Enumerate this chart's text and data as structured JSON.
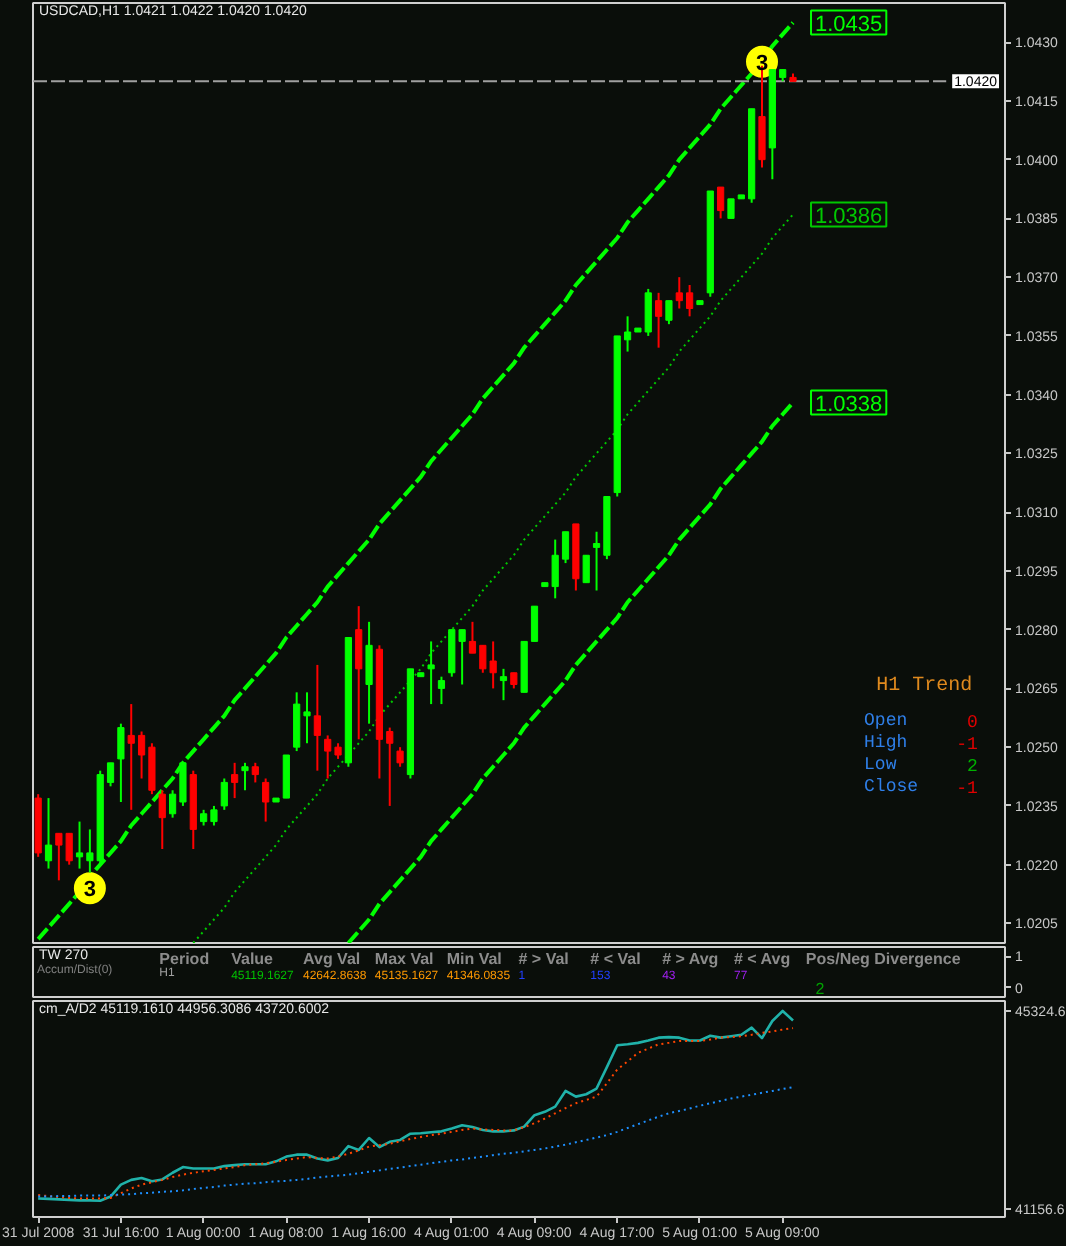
{
  "chart_data": [
    {
      "type": "candlestick",
      "title": "USDCAD,H1 1.0421 1.0422 1.0420 1.0420",
      "categories": [
        "31 Jul 2008",
        null,
        null,
        null,
        null,
        null,
        null,
        null,
        "31 Jul 16:00",
        null,
        null,
        null,
        null,
        null,
        null,
        null,
        "1 Aug 00:00",
        null,
        null,
        null,
        null,
        null,
        null,
        null,
        "1 Aug 08:00",
        null,
        null,
        null,
        null,
        null,
        null,
        null,
        "1 Aug 16:00",
        null,
        null,
        null,
        null,
        null,
        null,
        null,
        "4 Aug 01:00",
        null,
        null,
        null,
        null,
        null,
        null,
        null,
        "4 Aug 09:00",
        null,
        null,
        null,
        null,
        null,
        null,
        null,
        "4 Aug 17:00",
        null,
        null,
        null,
        null,
        null,
        null,
        null,
        "5 Aug 01:00",
        null,
        null,
        null,
        null,
        null,
        null,
        null,
        "5 Aug 09:00",
        null,
        null,
        null,
        null,
        null,
        null,
        null,
        null,
        null,
        null,
        null,
        null,
        null,
        null,
        null,
        null,
        null,
        null,
        null,
        null,
        null
      ],
      "ohlc": [
        [
          1.0237,
          1.0238,
          1.0222,
          1.0223
        ],
        [
          1.0221,
          1.0237,
          1.0219,
          1.0225
        ],
        [
          1.0228,
          1.0228,
          1.0216,
          1.0225
        ],
        [
          1.0228,
          1.0228,
          1.022,
          1.0221
        ],
        [
          1.0222,
          1.0231,
          1.0219,
          1.0223
        ],
        [
          1.0221,
          1.0229,
          1.0218,
          1.0223
        ],
        [
          1.0221,
          1.0244,
          1.022,
          1.0243
        ],
        [
          1.0241,
          1.0246,
          1.024,
          1.0246
        ],
        [
          1.0247,
          1.0256,
          1.0236,
          1.0255
        ],
        [
          1.0253,
          1.0261,
          1.0234,
          1.0251
        ],
        [
          1.0253,
          1.0254,
          1.0242,
          1.0248
        ],
        [
          1.025,
          1.0251,
          1.0238,
          1.0239
        ],
        [
          1.0238,
          1.0239,
          1.0224,
          1.0232
        ],
        [
          1.0233,
          1.0239,
          1.0232,
          1.0238
        ],
        [
          1.0236,
          1.0246,
          1.0235,
          1.0246
        ],
        [
          1.0243,
          1.0244,
          1.0224,
          1.0229
        ],
        [
          1.0231,
          1.0234,
          1.023,
          1.0233
        ],
        [
          1.0231,
          1.0235,
          1.023,
          1.0234
        ],
        [
          1.0235,
          1.0242,
          1.0234,
          1.0241
        ],
        [
          1.0243,
          1.0246,
          1.0237,
          1.0241
        ],
        [
          1.0244,
          1.0246,
          1.0239,
          1.0245
        ],
        [
          1.0245,
          1.0246,
          1.0241,
          1.0243
        ],
        [
          1.0241,
          1.0242,
          1.0231,
          1.0236
        ],
        [
          1.0236,
          1.0237,
          1.0236,
          1.0237
        ],
        [
          1.0237,
          1.0248,
          1.0237,
          1.0248
        ],
        [
          1.025,
          1.0264,
          1.0249,
          1.0261
        ],
        [
          1.0258,
          1.0264,
          1.0251,
          1.0259
        ],
        [
          1.0258,
          1.0271,
          1.0244,
          1.0253
        ],
        [
          1.0252,
          1.0253,
          1.0242,
          1.0249
        ],
        [
          1.025,
          1.0251,
          1.0247,
          1.0248
        ],
        [
          1.0246,
          1.0278,
          1.0245,
          1.0278
        ],
        [
          1.028,
          1.0286,
          1.0252,
          1.027
        ],
        [
          1.0266,
          1.0282,
          1.0256,
          1.0276
        ],
        [
          1.0275,
          1.0276,
          1.0242,
          1.0252
        ],
        [
          1.0254,
          1.0255,
          1.0235,
          1.0251
        ],
        [
          1.0249,
          1.025,
          1.0245,
          1.0246
        ],
        [
          1.0243,
          1.027,
          1.0242,
          1.027
        ],
        [
          1.0268,
          1.0269,
          1.0268,
          1.0269
        ],
        [
          1.027,
          1.0277,
          1.0261,
          1.0271
        ],
        [
          1.0265,
          1.0268,
          1.0261,
          1.0267
        ],
        [
          1.0269,
          1.028,
          1.0268,
          1.028
        ],
        [
          1.0277,
          1.028,
          1.0266,
          1.028
        ],
        [
          1.0277,
          1.0282,
          1.0274,
          1.0274
        ],
        [
          1.0276,
          1.0276,
          1.0269,
          1.027
        ],
        [
          1.0272,
          1.0277,
          1.0265,
          1.0269
        ],
        [
          1.0267,
          1.027,
          1.0262,
          1.0268
        ],
        [
          1.0269,
          1.0269,
          1.0265,
          1.0266
        ],
        [
          1.0264,
          1.0277,
          1.0264,
          1.0277
        ],
        [
          1.0277,
          1.0286,
          1.0277,
          1.0286
        ],
        [
          1.0291,
          1.0292,
          1.0291,
          1.0292
        ],
        [
          1.0291,
          1.0303,
          1.0288,
          1.0299
        ],
        [
          1.0298,
          1.0305,
          1.0297,
          1.0305
        ],
        [
          1.0307,
          1.0307,
          1.029,
          1.0293
        ],
        [
          1.0292,
          1.0299,
          1.0292,
          1.0299
        ],
        [
          1.0301,
          1.0305,
          1.029,
          1.0302
        ],
        [
          1.0299,
          1.0314,
          1.0298,
          1.0314
        ],
        [
          1.0315,
          1.0355,
          1.0314,
          1.0355
        ],
        [
          1.0354,
          1.036,
          1.0351,
          1.0356
        ],
        [
          1.0356,
          1.0357,
          1.0356,
          1.0357
        ],
        [
          1.0356,
          1.0367,
          1.0355,
          1.0366
        ],
        [
          1.0364,
          1.0366,
          1.0352,
          1.036
        ],
        [
          1.0359,
          1.0364,
          1.0358,
          1.0364
        ],
        [
          1.0366,
          1.037,
          1.0362,
          1.0364
        ],
        [
          1.0366,
          1.0368,
          1.036,
          1.0362
        ],
        [
          1.0363,
          1.0364,
          1.0363,
          1.0364
        ],
        [
          1.0366,
          1.0392,
          1.0365,
          1.0392
        ],
        [
          1.0393,
          1.0393,
          1.0385,
          1.0387
        ],
        [
          1.0385,
          1.039,
          1.0385,
          1.039
        ],
        [
          1.039,
          1.0391,
          1.039,
          1.0391
        ],
        [
          1.039,
          1.0413,
          1.0389,
          1.0413
        ],
        [
          1.0411,
          1.0424,
          1.0398,
          1.04
        ],
        [
          1.0403,
          1.0423,
          1.0395,
          1.0423
        ],
        [
          1.0421,
          1.0423,
          1.042,
          1.0423
        ],
        [
          1.0421,
          1.0422,
          1.042,
          1.042
        ],
        null,
        null,
        null,
        null,
        null,
        null,
        null,
        null,
        null,
        null,
        null,
        null,
        null,
        null,
        null,
        null,
        null,
        null,
        null,
        null
      ],
      "colors": [
        "#ff0000",
        "#00ff00",
        "#ff0000",
        "#ff0000",
        "#00ff00",
        "#00ff00",
        "#00ff00",
        "#00ff00",
        "#00ff00",
        "#ff0000",
        "#ff0000",
        "#ff0000",
        "#ff0000",
        "#00ff00",
        "#00ff00",
        "#ff0000",
        "#00ff00",
        "#00ff00",
        "#00ff00",
        "#ff0000",
        "#00ff00",
        "#ff0000",
        "#ff0000",
        "#00ff00",
        "#00ff00",
        "#00ff00",
        "#00ff00",
        "#ff0000",
        "#ff0000",
        "#ff0000",
        "#00ff00",
        "#ff0000",
        "#00ff00",
        "#ff0000",
        "#ff0000",
        "#ff0000",
        "#00ff00",
        "#00ff00",
        "#00ff00",
        "#00ff00",
        "#00ff00",
        "#00ff00",
        "#ff0000",
        "#ff0000",
        "#ff0000",
        "#00ff00",
        "#ff0000",
        "#00ff00",
        "#00ff00",
        "#00ff00",
        "#00ff00",
        "#00ff00",
        "#ff0000",
        "#00ff00",
        "#00ff00",
        "#00ff00",
        "#00ff00",
        "#00ff00",
        "#00ff00",
        "#00ff00",
        "#ff0000",
        "#00ff00",
        "#ff0000",
        "#ff0000",
        "#00ff00",
        "#00ff00",
        "#ff0000",
        "#00ff00",
        "#00ff00",
        "#00ff00",
        "#ff0000",
        "#00ff00",
        "#00ff00",
        "#ff0000",
        null,
        null,
        null,
        null,
        null,
        null,
        null,
        null,
        null,
        null,
        null,
        null,
        null,
        null,
        null,
        null,
        null,
        null,
        null,
        null
      ],
      "series": [
        {
          "type": "line",
          "color": "#00ff00",
          "line_style": "dashed",
          "values": [
            1.0201,
            1.0204,
            1.0207,
            1.021,
            1.0213,
            1.0217,
            1.022,
            1.0223,
            1.0226,
            1.023,
            1.0233,
            1.0236,
            1.0239,
            1.0242,
            1.0246,
            1.0249,
            1.0252,
            1.0255,
            1.0258,
            1.0262,
            1.0265,
            1.0268,
            1.0271,
            1.0274,
            1.0278,
            1.0281,
            1.0284,
            1.0287,
            1.0291,
            1.0294,
            1.0297,
            1.03,
            1.0303,
            1.0307,
            1.031,
            1.0313,
            1.0316,
            1.0319,
            1.0323,
            1.0326,
            1.0329,
            1.0332,
            1.0335,
            1.0339,
            1.0342,
            1.0345,
            1.0348,
            1.0352,
            1.0355,
            1.0358,
            1.0361,
            1.0364,
            1.0368,
            1.0371,
            1.0374,
            1.0377,
            1.038,
            1.0384,
            1.0387,
            1.039,
            1.0393,
            1.0396,
            1.04,
            1.0403,
            1.0406,
            1.0409,
            1.0413,
            1.0416,
            1.0419,
            1.0422,
            1.0425,
            1.0429,
            1.0432,
            1.0435,
            null,
            null,
            null,
            null,
            null,
            null,
            null,
            null,
            null,
            null,
            null,
            null,
            null,
            null,
            null,
            null,
            null,
            null,
            null,
            null
          ],
          "value_labels": [
            null,
            null,
            null,
            null,
            null,
            null,
            null,
            null,
            null,
            null,
            null,
            null,
            null,
            null,
            null,
            null,
            null,
            null,
            null,
            null,
            null,
            null,
            null,
            null,
            null,
            null,
            null,
            null,
            null,
            null,
            null,
            null,
            null,
            null,
            null,
            null,
            null,
            null,
            null,
            null,
            null,
            null,
            null,
            null,
            null,
            null,
            null,
            null,
            null,
            null,
            null,
            null,
            null,
            null,
            null,
            null,
            null,
            null,
            null,
            null,
            null,
            null,
            null,
            null,
            null,
            null,
            null,
            null,
            null,
            null,
            null,
            null,
            null,
            "1.0435",
            null,
            null,
            null,
            null,
            null,
            null,
            null,
            null,
            null,
            null,
            null,
            null,
            null,
            null,
            null,
            null,
            null,
            null,
            null,
            null
          ]
        },
        {
          "type": "line",
          "color": "#00c800",
          "line_style": "dotted",
          "values": [
            null,
            null,
            null,
            null,
            null,
            null,
            null,
            null,
            null,
            null,
            null,
            null,
            null,
            null,
            null,
            1.02,
            1.0203,
            1.0206,
            1.0209,
            1.0213,
            1.0216,
            1.0219,
            1.0222,
            1.0225,
            1.0229,
            1.0232,
            1.0235,
            1.0238,
            1.0242,
            1.0245,
            1.0248,
            1.0251,
            1.0254,
            1.0258,
            1.0261,
            1.0264,
            1.0267,
            1.027,
            1.0274,
            1.0277,
            1.028,
            1.0283,
            1.0286,
            1.029,
            1.0293,
            1.0296,
            1.0299,
            1.0303,
            1.0306,
            1.0309,
            1.0312,
            1.0315,
            1.0319,
            1.0322,
            1.0325,
            1.0328,
            1.0331,
            1.0335,
            1.0338,
            1.0341,
            1.0344,
            1.0347,
            1.0351,
            1.0354,
            1.0357,
            1.036,
            1.0364,
            1.0367,
            1.037,
            1.0373,
            1.0376,
            1.038,
            1.0383,
            1.0386,
            null,
            null,
            null,
            null,
            null,
            null,
            null,
            null,
            null,
            null,
            null,
            null,
            null,
            null,
            null,
            null,
            null,
            null,
            null,
            null
          ],
          "value_labels": [
            null,
            null,
            null,
            null,
            null,
            null,
            null,
            null,
            null,
            null,
            null,
            null,
            null,
            null,
            null,
            null,
            null,
            null,
            null,
            null,
            null,
            null,
            null,
            null,
            null,
            null,
            null,
            null,
            null,
            null,
            null,
            null,
            null,
            null,
            null,
            null,
            null,
            null,
            null,
            null,
            null,
            null,
            null,
            null,
            null,
            null,
            null,
            null,
            null,
            null,
            null,
            null,
            null,
            null,
            null,
            null,
            null,
            null,
            null,
            null,
            null,
            null,
            null,
            null,
            null,
            null,
            null,
            null,
            null,
            null,
            null,
            null,
            null,
            "1.0386",
            null,
            null,
            null,
            null,
            null,
            null,
            null,
            null,
            null,
            null,
            null,
            null,
            null,
            null,
            null,
            null,
            null,
            null,
            null,
            null
          ]
        },
        {
          "type": "line",
          "color": "#00ff00",
          "line_style": "dashed",
          "values": [
            null,
            null,
            null,
            null,
            null,
            null,
            null,
            null,
            null,
            null,
            null,
            null,
            null,
            null,
            null,
            null,
            null,
            null,
            null,
            null,
            null,
            null,
            null,
            null,
            null,
            null,
            null,
            null,
            null,
            null,
            1.02,
            1.0203,
            1.0206,
            1.021,
            1.0213,
            1.0216,
            1.0219,
            1.0222,
            1.0226,
            1.0229,
            1.0232,
            1.0235,
            1.0238,
            1.0242,
            1.0245,
            1.0248,
            1.0251,
            1.0255,
            1.0258,
            1.0261,
            1.0264,
            1.0267,
            1.0271,
            1.0274,
            1.0277,
            1.028,
            1.0283,
            1.0287,
            1.029,
            1.0293,
            1.0296,
            1.0299,
            1.0303,
            1.0306,
            1.0309,
            1.0312,
            1.0316,
            1.0319,
            1.0322,
            1.0325,
            1.0328,
            1.0332,
            1.0335,
            1.0338,
            null,
            null,
            null,
            null,
            null,
            null,
            null,
            null,
            null,
            null,
            null,
            null,
            null,
            null,
            null,
            null,
            null,
            null,
            null,
            null
          ],
          "value_labels": [
            null,
            null,
            null,
            null,
            null,
            null,
            null,
            null,
            null,
            null,
            null,
            null,
            null,
            null,
            null,
            null,
            null,
            null,
            null,
            null,
            null,
            null,
            null,
            null,
            null,
            null,
            null,
            null,
            null,
            null,
            null,
            null,
            null,
            null,
            null,
            null,
            null,
            null,
            null,
            null,
            null,
            null,
            null,
            null,
            null,
            null,
            null,
            null,
            null,
            null,
            null,
            null,
            null,
            null,
            null,
            null,
            null,
            null,
            null,
            null,
            null,
            null,
            null,
            null,
            null,
            null,
            null,
            null,
            null,
            null,
            null,
            null,
            null,
            "1.0338",
            null,
            null,
            null,
            null,
            null,
            null,
            null,
            null,
            null,
            null,
            null,
            null,
            null,
            null,
            null,
            null,
            null,
            null,
            null,
            null
          ]
        },
        {
          "type": "scatter",
          "name": "3",
          "color": "#ffff00",
          "marker": "circle",
          "values": [
            null,
            null,
            null,
            null,
            null,
            1.0214,
            null,
            null,
            null,
            null,
            null,
            null,
            null,
            null,
            null,
            null,
            null,
            null,
            null,
            null,
            null,
            null,
            null,
            null,
            null,
            null,
            null,
            null,
            null,
            null,
            null,
            null,
            null,
            null,
            null,
            null,
            null,
            null,
            null,
            null,
            null,
            null,
            null,
            null,
            null,
            null,
            null,
            null,
            null,
            null,
            null,
            null,
            null,
            null,
            null,
            null,
            null,
            null,
            null,
            null,
            null,
            null,
            null,
            null,
            null,
            null,
            null,
            null,
            null,
            null,
            1.0425,
            null,
            null,
            null,
            null,
            null,
            null,
            null,
            null,
            null,
            null,
            null,
            null,
            null,
            null,
            null,
            null,
            null,
            null,
            null,
            null,
            null,
            null,
            null
          ]
        }
      ],
      "ylim": [
        1.02,
        1.044
      ],
      "yticks": [
        1.0205,
        {
          "value": 1.022,
          "label": "1.0220"
        },
        1.0235,
        {
          "value": 1.025,
          "label": "1.0250"
        },
        1.0265,
        {
          "value": 1.028,
          "label": "1.0280"
        },
        1.0295,
        {
          "value": 1.031,
          "label": "1.0310"
        },
        1.0325,
        {
          "value": 1.034,
          "label": "1.0340"
        },
        1.0355,
        {
          "value": 1.037,
          "label": "1.0370"
        },
        1.0385,
        {
          "value": 1.04,
          "label": "1.0400"
        },
        1.0415,
        {
          "value": 1.043,
          "label": "1.0430"
        }
      ],
      "tick_labels": "y",
      "ref_lines": [
        {
          "axis": "y",
          "value": 1.042,
          "label": "1.0420",
          "color": "#a0a0a0",
          "line_style": "dashed"
        }
      ],
      "annotations": [
        "H1 Trend",
        "Open",
        "0",
        "High",
        "-1",
        "Low",
        "2",
        "Close",
        "-1"
      ]
    },
    {
      "type": "line",
      "title": "TW 270",
      "subtitle": "Accum/Dist(0)",
      "categories": [
        "31 Jul 2008",
        null,
        null,
        null,
        null,
        null,
        null,
        null,
        "31 Jul 16:00",
        null,
        null,
        null,
        null,
        null,
        null,
        null,
        "1 Aug 00:00",
        null,
        null,
        null,
        null,
        null,
        null,
        null,
        "1 Aug 08:00",
        null,
        null,
        null,
        null,
        null,
        null,
        null,
        "1 Aug 16:00",
        null,
        null,
        null,
        null,
        null,
        null,
        null,
        "4 Aug 01:00",
        null,
        null,
        null,
        null,
        null,
        null,
        null,
        "4 Aug 09:00",
        null,
        null,
        null,
        null,
        null,
        null,
        null,
        "4 Aug 17:00",
        null,
        null,
        null,
        null,
        null,
        null,
        null,
        "5 Aug 01:00",
        null,
        null,
        null,
        null,
        null,
        null,
        null,
        "5 Aug 09:00",
        null,
        null,
        null,
        null,
        null,
        null,
        null,
        null,
        null,
        null,
        null,
        null,
        null,
        null,
        null,
        null,
        null,
        null,
        null,
        null,
        null
      ],
      "ylim": [
        -0.3,
        1.3
      ],
      "yticks": [
        0,
        1
      ],
      "tick_labels": "y",
      "annotations": [
        "Period",
        "Value",
        "Avg Val",
        "Max Val",
        "Min Val",
        "# > Val",
        "# < Val",
        "# > Avg",
        "# < Avg",
        "Pos/Neg Divergence",
        "H1",
        "45119.1627",
        "42642.8638",
        "45135.1627",
        "41346.0835",
        "1",
        "153",
        "43",
        "77",
        "2"
      ]
    },
    {
      "type": "line",
      "title": "cm_A/D2 45119.1610 44956.3086 43720.6002",
      "categories": [
        "31 Jul 2008",
        null,
        null,
        null,
        null,
        null,
        null,
        null,
        "31 Jul 16:00",
        null,
        null,
        null,
        null,
        null,
        null,
        null,
        "1 Aug 00:00",
        null,
        null,
        null,
        null,
        null,
        null,
        null,
        "1 Aug 08:00",
        null,
        null,
        null,
        null,
        null,
        null,
        null,
        "1 Aug 16:00",
        null,
        null,
        null,
        null,
        null,
        null,
        null,
        "4 Aug 01:00",
        null,
        null,
        null,
        null,
        null,
        null,
        null,
        "4 Aug 09:00",
        null,
        null,
        null,
        null,
        null,
        null,
        null,
        "4 Aug 17:00",
        null,
        null,
        null,
        null,
        null,
        null,
        null,
        "5 Aug 01:00",
        null,
        null,
        null,
        null,
        null,
        null,
        null,
        "5 Aug 09:00",
        null,
        null,
        null,
        null,
        null,
        null,
        null,
        null,
        null,
        null,
        null,
        null,
        null,
        null,
        null,
        null,
        null,
        null,
        null,
        null,
        null
      ],
      "ylim": [
        40990,
        45530
      ],
      "yticks": [
        41156.6,
        45324.6
      ],
      "series": [
        {
          "color": "#20b2aa",
          "line_style": "solid",
          "values": [
            41380,
            41370,
            41360,
            41350,
            41340,
            41340,
            41330,
            41420,
            41670,
            41770,
            41810,
            41740,
            41780,
            41920,
            42040,
            42010,
            42010,
            42010,
            42060,
            42080,
            42100,
            42100,
            42100,
            42160,
            42260,
            42300,
            42300,
            42220,
            42180,
            42230,
            42480,
            42400,
            42650,
            42460,
            42570,
            42610,
            42740,
            42750,
            42770,
            42790,
            42850,
            42920,
            42880,
            42820,
            42790,
            42790,
            42810,
            42890,
            43130,
            43200,
            43310,
            43640,
            43520,
            43570,
            43690,
            44140,
            44600,
            44620,
            44650,
            44700,
            44760,
            44770,
            44760,
            44700,
            44700,
            44800,
            44760,
            44790,
            44820,
            44970,
            44750,
            45110,
            45320,
            45120,
            null,
            null,
            null,
            null,
            null,
            null,
            null,
            null,
            null,
            null,
            null,
            null,
            null,
            null,
            null,
            null,
            null,
            null,
            null,
            null
          ]
        },
        {
          "color": "#ff4500",
          "line_style": "dotted",
          "values": [
            41450,
            41430,
            41410,
            41390,
            41380,
            41380,
            41380,
            41390,
            41490,
            41590,
            41670,
            41720,
            41770,
            41830,
            41880,
            41920,
            41950,
            41980,
            42010,
            42040,
            42080,
            42100,
            42120,
            42150,
            42190,
            42220,
            42250,
            42230,
            42220,
            42260,
            42320,
            42390,
            42470,
            42500,
            42530,
            42580,
            42630,
            42670,
            42710,
            42740,
            42780,
            42820,
            42850,
            42830,
            42820,
            42810,
            42810,
            42880,
            42960,
            43060,
            43170,
            43280,
            43380,
            43450,
            43520,
            43800,
            44090,
            44260,
            44440,
            44530,
            44620,
            44650,
            44690,
            44690,
            44690,
            44720,
            44760,
            44770,
            44790,
            44820,
            44860,
            44890,
            44930,
            44960,
            null,
            null,
            null,
            null,
            null,
            null,
            null,
            null,
            null,
            null,
            null,
            null,
            null,
            null,
            null,
            null,
            null,
            null,
            null,
            null
          ]
        },
        {
          "color": "#1e90ff",
          "line_style": "dotted",
          "values": [
            41420,
            41420,
            41430,
            41430,
            41440,
            41440,
            41440,
            41450,
            41460,
            41470,
            41490,
            41500,
            41520,
            41530,
            41550,
            41580,
            41600,
            41620,
            41650,
            41670,
            41690,
            41700,
            41720,
            41740,
            41750,
            41770,
            41790,
            41820,
            41840,
            41860,
            41880,
            41910,
            41940,
            41970,
            42000,
            42030,
            42060,
            42090,
            42120,
            42150,
            42180,
            42200,
            42230,
            42260,
            42290,
            42320,
            42340,
            42370,
            42400,
            42430,
            42470,
            42510,
            42560,
            42610,
            42660,
            42710,
            42780,
            42860,
            42940,
            43020,
            43100,
            43170,
            43220,
            43270,
            43330,
            43380,
            43430,
            43480,
            43520,
            43560,
            43600,
            43640,
            43680,
            43720,
            null,
            null,
            null,
            null,
            null,
            null,
            null,
            null,
            null,
            null,
            null,
            null,
            null,
            null,
            null,
            null,
            null,
            null,
            null,
            null
          ]
        }
      ]
    }
  ]
}
